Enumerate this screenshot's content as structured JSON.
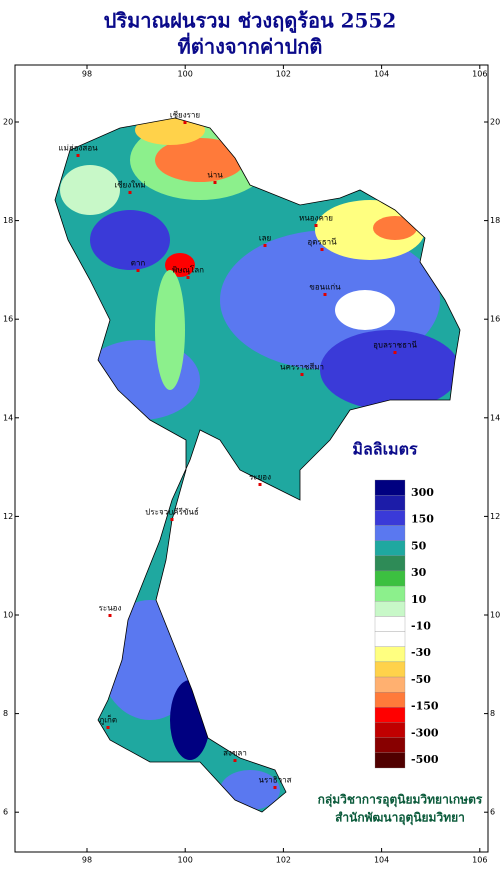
{
  "header": {
    "title_line1": "ปริมาณฝนรวม ช่วงฤดูร้อน 2552",
    "title_line2": "ที่ต่างจากค่าปกติ"
  },
  "map": {
    "lon_ticks": [
      98,
      100,
      102,
      104,
      106
    ],
    "lat_ticks": [
      20,
      18,
      16,
      14,
      12,
      10,
      8,
      6
    ],
    "places": [
      "เชียงราย",
      "เชียงใหม่",
      "น่าน",
      "แม่ฮ่องสอน",
      "ตาก",
      "พิษณุโลก",
      "เลย",
      "หนองคาย",
      "อุดรธานี",
      "ขอนแก่น",
      "นครราชสีมา",
      "อุบลราชธานี",
      "ระยอง",
      "ประจวบคีรีขันธ์",
      "ระนอง",
      "ภูเก็ต",
      "สงขลา",
      "นราธิวาส"
    ]
  },
  "legend": {
    "title": "มิลลิเมตร",
    "colors": [
      "#000080",
      "#1c1ca8",
      "#3a3ad8",
      "#5a78f0",
      "#1fa8a0",
      "#2e8b57",
      "#3cc040",
      "#8cf08c",
      "#c8f8c8",
      "#ffffff",
      "#ffffff",
      "#ffff80",
      "#ffd24a",
      "#ffb070",
      "#ff7a3a",
      "#ff0000",
      "#c00000",
      "#880000",
      "#500000"
    ],
    "labels": [
      "300",
      "150",
      "50",
      "30",
      "10",
      "-10",
      "-30",
      "-50",
      "-150",
      "-300",
      "-500"
    ]
  },
  "credits": {
    "line1": "กลุ่มวิชาการอุตุนิยมวิทยาเกษตร",
    "line2": "สำนักพัฒนาอุตุนิยมวิทยา"
  }
}
